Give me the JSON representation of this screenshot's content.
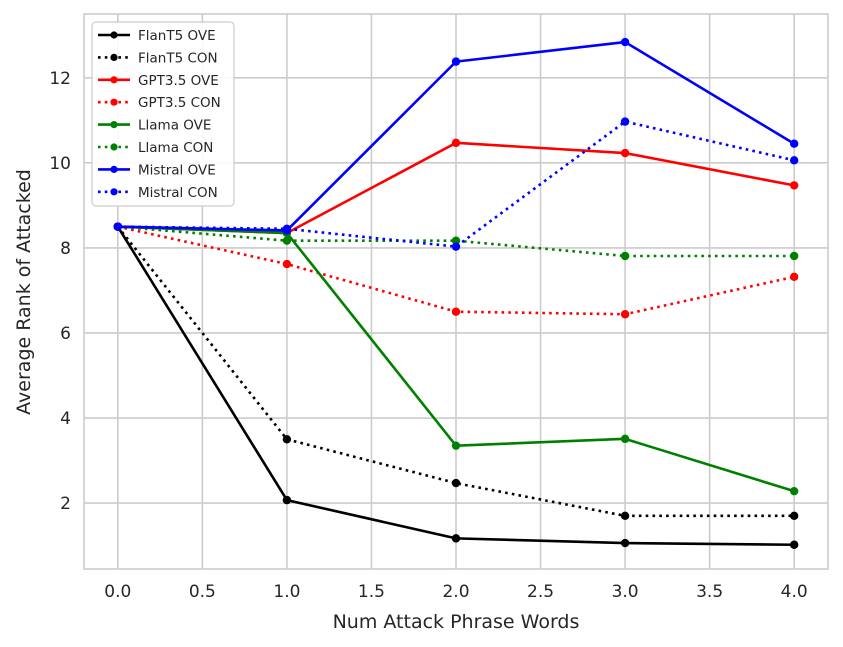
{
  "chart_data": {
    "type": "line",
    "xlabel": "Num Attack Phrase Words",
    "ylabel": "Average Rank of Attacked",
    "x": [
      0.0,
      1.0,
      2.0,
      3.0,
      4.0
    ],
    "xlim": [
      -0.2,
      4.2
    ],
    "ylim": [
      0.45,
      13.5
    ],
    "xticks": [
      "0.0",
      "0.5",
      "1.0",
      "1.5",
      "2.0",
      "2.5",
      "3.0",
      "3.5",
      "4.0"
    ],
    "yticks": [
      "2",
      "4",
      "6",
      "8",
      "10",
      "12"
    ],
    "grid": true,
    "legend_position": "top-left",
    "series": [
      {
        "name": "FlanT5 OVE",
        "color": "#000000",
        "style": "solid",
        "values": [
          8.5,
          2.07,
          1.17,
          1.06,
          1.02
        ]
      },
      {
        "name": "FlanT5 CON",
        "color": "#000000",
        "style": "dotted",
        "values": [
          8.5,
          3.5,
          2.47,
          1.7,
          1.7
        ]
      },
      {
        "name": "GPT3.5 OVE",
        "color": "#ff0000",
        "style": "solid",
        "values": [
          8.5,
          8.35,
          10.47,
          10.23,
          9.47
        ]
      },
      {
        "name": "GPT3.5 CON",
        "color": "#ff0000",
        "style": "dotted",
        "values": [
          8.5,
          7.62,
          6.5,
          6.44,
          7.32
        ]
      },
      {
        "name": "Llama OVE",
        "color": "#008000",
        "style": "solid",
        "values": [
          8.5,
          8.35,
          3.35,
          3.51,
          2.28
        ]
      },
      {
        "name": "Llama CON",
        "color": "#008000",
        "style": "dotted",
        "values": [
          8.5,
          8.17,
          8.17,
          7.81,
          7.81
        ]
      },
      {
        "name": "Mistral OVE",
        "color": "#0000ff",
        "style": "solid",
        "values": [
          8.5,
          8.41,
          12.38,
          12.84,
          10.45
        ]
      },
      {
        "name": "Mistral CON",
        "color": "#0000ff",
        "style": "dotted",
        "values": [
          8.5,
          8.45,
          8.03,
          10.97,
          10.06
        ]
      }
    ]
  }
}
